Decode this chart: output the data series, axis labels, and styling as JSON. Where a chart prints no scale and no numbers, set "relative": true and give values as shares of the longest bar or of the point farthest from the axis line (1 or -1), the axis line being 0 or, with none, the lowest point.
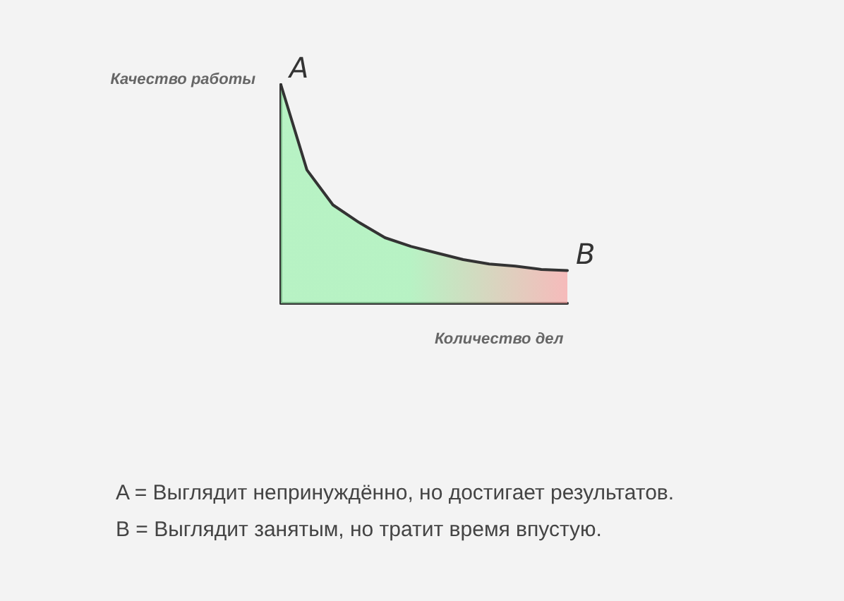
{
  "chart_data": {
    "type": "area",
    "relative": true,
    "xlabel": "Количество дел",
    "ylabel": "Качество работы",
    "categories": [
      null,
      null,
      null,
      null,
      null,
      null,
      null,
      null,
      null,
      null,
      null,
      null
    ],
    "series": [
      {
        "color": "#9ef2b0",
        "values": [
          1.0,
          0.61,
          0.45,
          0.37,
          0.3,
          0.26,
          0.23,
          0.2,
          0.18,
          0.17,
          0.155,
          0.15
        ]
      }
    ],
    "annotations": [
      "A",
      "B",
      "A = Выглядит непринуждённо, но достигает результатов.",
      "B = Выглядит занятым, но тратит время впустую."
    ]
  }
}
